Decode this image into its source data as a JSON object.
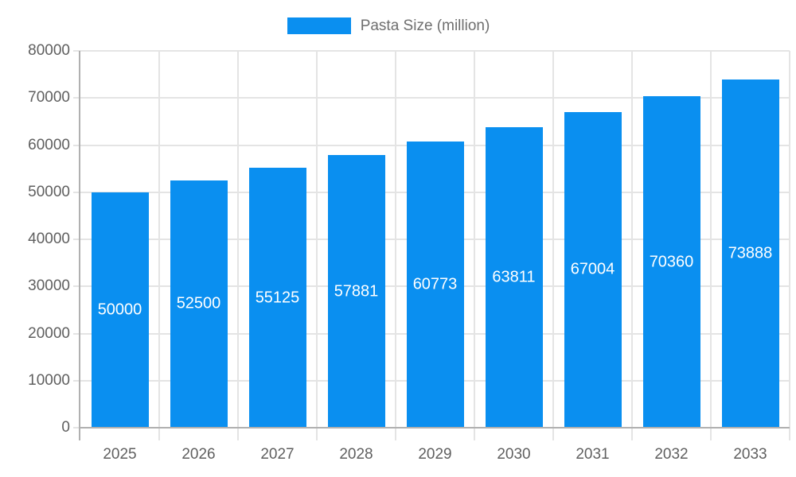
{
  "chart_data": {
    "type": "bar",
    "title": "",
    "legend_label": "Pasta Size (million)",
    "legend_position": "top",
    "categories": [
      "2025",
      "2026",
      "2027",
      "2028",
      "2029",
      "2030",
      "2031",
      "2032",
      "2033"
    ],
    "series": [
      {
        "name": "Pasta Size (million)",
        "values": [
          50000,
          52500,
          55125,
          57881,
          60773,
          63811,
          67004,
          70360,
          73888
        ]
      }
    ],
    "bar_value_labels": [
      "50000",
      "52500",
      "55125",
      "57881",
      "60773",
      "63811",
      "67004",
      "70360",
      "73888"
    ],
    "yticks": [
      0,
      10000,
      20000,
      30000,
      40000,
      50000,
      60000,
      70000,
      80000
    ],
    "ylim": [
      0,
      80000
    ],
    "xlabel": "",
    "ylabel": "",
    "grid": true
  },
  "colors": {
    "bar": "#0a8ff0",
    "grid": "#e4e4e4",
    "axis": "#b0b0b0",
    "axis_text": "#5f5f5f",
    "legend_text": "#6e6e6e",
    "annotation_text": "#ffffff",
    "background": "#ffffff"
  }
}
